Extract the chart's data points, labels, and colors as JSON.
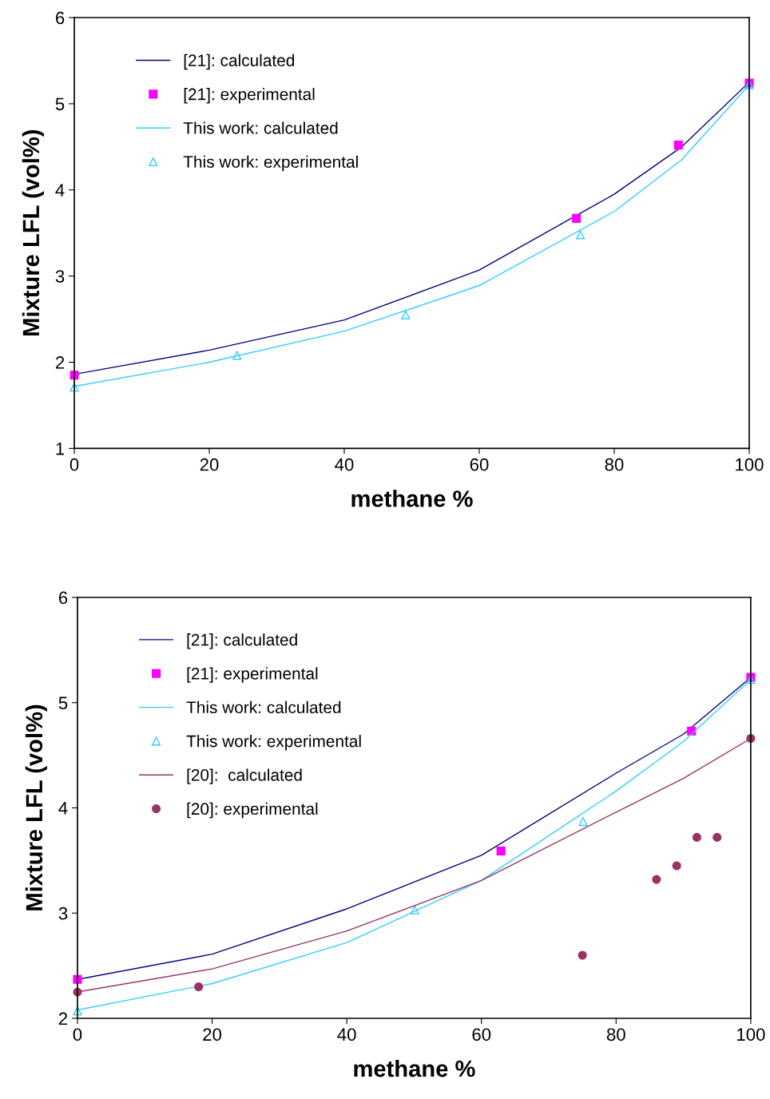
{
  "chart_data": [
    {
      "type": "line",
      "xlabel": "methane %",
      "ylabel": "Mixture LFL (vol%)",
      "xlim": [
        0,
        100
      ],
      "ylim": [
        1,
        6
      ],
      "xticks": [
        0,
        20,
        40,
        60,
        80,
        100
      ],
      "yticks": [
        1,
        2,
        3,
        4,
        5,
        6
      ],
      "grid": false,
      "legend": "top left",
      "series": [
        {
          "name": "[21]: calculated",
          "marker": "none",
          "color": "#000080",
          "x": [
            0,
            20,
            40,
            60,
            80,
            90,
            100
          ],
          "values": [
            1.86,
            2.14,
            2.49,
            3.07,
            3.95,
            4.5,
            5.25
          ]
        },
        {
          "name": "[21]: experimental",
          "type": "scatter",
          "marker": "square",
          "color": "#ff00ff",
          "x": [
            0,
            74.4,
            89.5,
            100
          ],
          "values": [
            1.85,
            3.67,
            4.52,
            5.24
          ]
        },
        {
          "name": "This work: calculated",
          "marker": "none",
          "color": "#33ccff",
          "x": [
            0,
            20,
            40,
            60,
            80,
            90,
            100
          ],
          "values": [
            1.72,
            2.0,
            2.36,
            2.89,
            3.75,
            4.35,
            5.22
          ]
        },
        {
          "name": "This work: experimental",
          "type": "scatter",
          "marker": "triangle",
          "color": "#33ccff",
          "x": [
            0,
            24.1,
            49.1,
            75,
            100
          ],
          "values": [
            1.71,
            2.08,
            2.55,
            3.48,
            5.22
          ]
        }
      ]
    },
    {
      "type": "line",
      "xlabel": "methane %",
      "ylabel": "Mixture LFL (vol%)",
      "xlim": [
        0,
        100
      ],
      "ylim": [
        2,
        6
      ],
      "xticks": [
        0,
        20,
        40,
        60,
        80,
        100
      ],
      "yticks": [
        2,
        3,
        4,
        5,
        6
      ],
      "grid": false,
      "legend": "top left",
      "series": [
        {
          "name": "[21]: calculated",
          "marker": "none",
          "color": "#000080",
          "x": [
            0,
            20,
            40,
            60,
            80,
            90,
            100
          ],
          "values": [
            2.37,
            2.61,
            3.04,
            3.55,
            4.33,
            4.7,
            5.24
          ]
        },
        {
          "name": "[21]: experimental",
          "type": "scatter",
          "marker": "square",
          "color": "#ff00ff",
          "x": [
            0,
            62.9,
            91.2,
            100
          ],
          "values": [
            2.37,
            3.59,
            4.73,
            5.24
          ]
        },
        {
          "name": "This work: calculated",
          "marker": "none",
          "color": "#33ccff",
          "x": [
            0,
            20,
            40,
            60,
            80,
            90,
            100
          ],
          "values": [
            2.08,
            2.33,
            2.72,
            3.31,
            4.16,
            4.63,
            5.22
          ]
        },
        {
          "name": "This work: experimental",
          "type": "scatter",
          "marker": "triangle",
          "color": "#33ccff",
          "x": [
            0,
            50.1,
            75.1,
            100
          ],
          "values": [
            2.07,
            3.03,
            3.87,
            5.22
          ]
        },
        {
          "name": "[20]:  calculated",
          "marker": "none",
          "color": "#993366",
          "x": [
            0,
            20,
            40,
            60,
            80,
            90,
            100
          ],
          "values": [
            2.25,
            2.47,
            2.83,
            3.31,
            3.96,
            4.28,
            4.66
          ]
        },
        {
          "name": "[20]: experimental",
          "type": "scatter",
          "marker": "circle",
          "color": "#993366",
          "x": [
            0,
            18,
            75,
            86,
            89,
            92,
            95,
            100
          ],
          "values": [
            2.25,
            2.3,
            2.6,
            3.32,
            3.45,
            3.72,
            3.72,
            4.66
          ]
        }
      ]
    }
  ]
}
